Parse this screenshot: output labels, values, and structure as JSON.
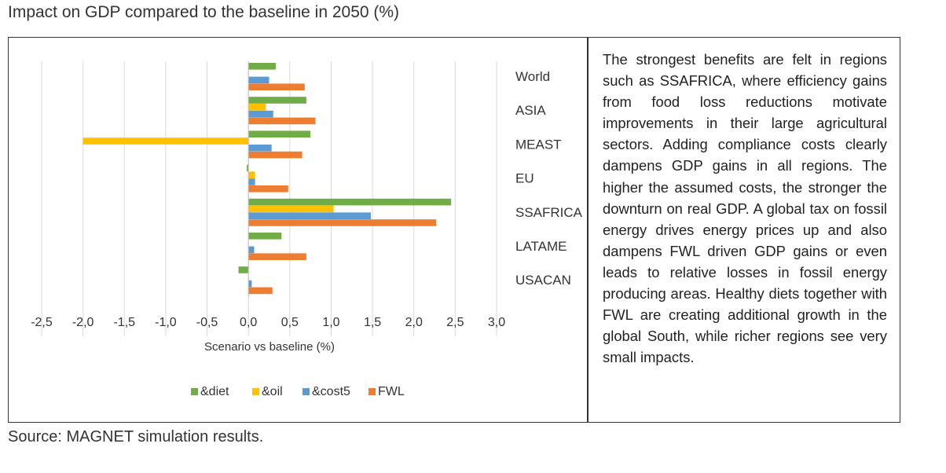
{
  "figure": {
    "title": "Impact on GDP compared to the baseline in 2050 (%)",
    "source": "Source: MAGNET simulation results."
  },
  "description": "The strongest benefits are felt in regions such as SSAFRICA, where efficiency gains from food loss reductions motivate improvements in their large agricultural sectors. Adding compliance costs clearly dampens GDP gains in all regions. The higher the assumed costs, the stronger the downturn on real GDP. A global tax on fossil energy drives energy prices up and also dampens FWL driven GDP gains or even leads to relative losses in fossil energy producing areas. Healthy diets together with FWL are creating additional growth in the global South, while richer regions see very small impacts.",
  "chart_data": {
    "type": "bar",
    "orientation": "horizontal",
    "categories": [
      "World",
      "ASIA",
      "MEAST",
      "EU",
      "SSAFRICA",
      "LATAME",
      "USACAN"
    ],
    "series": [
      {
        "name": "&diet",
        "color": "#70ad47",
        "values": [
          0.33,
          0.7,
          0.75,
          -0.02,
          2.45,
          0.4,
          -0.12
        ]
      },
      {
        "name": "&oil",
        "color": "#ffc000",
        "values": [
          0.0,
          0.21,
          -2.0,
          0.08,
          1.03,
          0.0,
          0.0
        ]
      },
      {
        "name": "&cost5",
        "color": "#5b9bd5",
        "values": [
          0.25,
          0.3,
          0.28,
          0.08,
          1.48,
          0.07,
          0.04
        ]
      },
      {
        "name": "FWL",
        "color": "#ed7d31",
        "values": [
          0.68,
          0.81,
          0.65,
          0.48,
          2.27,
          0.7,
          0.29
        ]
      }
    ],
    "xlim": [
      -2.5,
      3.0
    ],
    "xticks": [
      -2.5,
      -2.0,
      -1.5,
      -1.0,
      -0.5,
      0.0,
      0.5,
      1.0,
      1.5,
      2.0,
      2.5,
      3.0
    ],
    "xtick_labels": [
      "-2,5",
      "-2,0",
      "-1,5",
      "-1,0",
      "-0,5",
      "0,0",
      "0,5",
      "1,0",
      "1,5",
      "2,0",
      "2,5",
      "3,0"
    ],
    "xlabel": "Scenario vs baseline (%)",
    "grid": "vertical",
    "legend_position": "bottom",
    "category_label_position": "right"
  }
}
